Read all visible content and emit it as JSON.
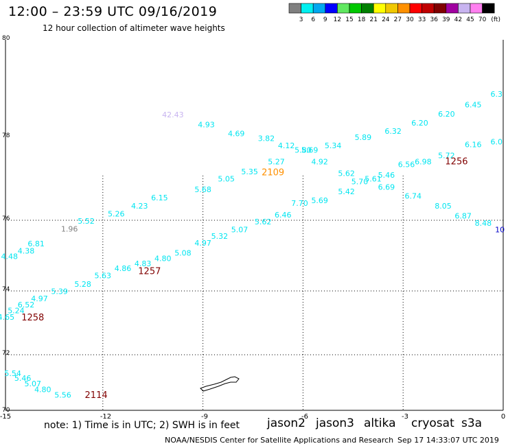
{
  "header": {
    "title": "12:00 – 23:59 UTC 09/16/2019",
    "subtitle": "12 hour collection of altimeter wave heights"
  },
  "color_scale": {
    "unit_label": "(ft)",
    "bins": [
      {
        "label": "3",
        "color": "#808080"
      },
      {
        "label": "6",
        "color": "#00f0f0"
      },
      {
        "label": "9",
        "color": "#00a8f0"
      },
      {
        "label": "12",
        "color": "#0000ff"
      },
      {
        "label": "15",
        "color": "#60e860"
      },
      {
        "label": "18",
        "color": "#00c800"
      },
      {
        "label": "21",
        "color": "#008000"
      },
      {
        "label": "24",
        "color": "#ffff00"
      },
      {
        "label": "27",
        "color": "#f0c800"
      },
      {
        "label": "30",
        "color": "#ff9000"
      },
      {
        "label": "33",
        "color": "#ff0000"
      },
      {
        "label": "36",
        "color": "#c00000"
      },
      {
        "label": "39",
        "color": "#800000"
      },
      {
        "label": "42",
        "color": "#a000a0"
      },
      {
        "label": "45",
        "color": "#c8b4f0"
      },
      {
        "label": "70",
        "color": "#ff80f0"
      },
      {
        "label": "",
        "color": "#000000"
      }
    ]
  },
  "map": {
    "lon_labels": [
      "-15",
      "-12",
      "-9",
      "-6",
      "-3",
      "0"
    ],
    "lat_labels": [
      "70",
      "72",
      "74",
      "76",
      "78",
      "80"
    ],
    "observations": [
      {
        "v": "42.43",
        "lon": -9.9,
        "lat": 78.28,
        "c": "#c8b4f0"
      },
      {
        "v": "4.93",
        "lon": -8.9,
        "lat": 78.06,
        "c": "#00e5f0"
      },
      {
        "v": "4.69",
        "lon": -8.0,
        "lat": 77.86,
        "c": "#00e5f0"
      },
      {
        "v": "3.82",
        "lon": -7.1,
        "lat": 77.76,
        "c": "#00e5f0"
      },
      {
        "v": "4.12",
        "lon": -6.5,
        "lat": 77.6,
        "c": "#00e5f0"
      },
      {
        "v": "5.80",
        "lon": -6.0,
        "lat": 77.5,
        "c": "#00e5f0"
      },
      {
        "v": "5.69",
        "lon": -5.8,
        "lat": 77.5,
        "c": "#00e5f0"
      },
      {
        "v": "5.34",
        "lon": -5.1,
        "lat": 77.6,
        "c": "#00e5f0"
      },
      {
        "v": "5.89",
        "lon": -4.2,
        "lat": 77.78,
        "c": "#00e5f0"
      },
      {
        "v": "6.32",
        "lon": -3.3,
        "lat": 77.92,
        "c": "#00e5f0"
      },
      {
        "v": "6.20",
        "lon": -2.5,
        "lat": 78.1,
        "c": "#00e5f0"
      },
      {
        "v": "6.20",
        "lon": -1.7,
        "lat": 78.3,
        "c": "#00e5f0"
      },
      {
        "v": "6.45",
        "lon": -0.9,
        "lat": 78.5,
        "c": "#00e5f0"
      },
      {
        "v": "6.3",
        "lon": -0.2,
        "lat": 78.74,
        "c": "#00e5f0"
      },
      {
        "v": "6.0",
        "lon": -0.2,
        "lat": 77.68,
        "c": "#00e5f0"
      },
      {
        "v": "6.16",
        "lon": -0.9,
        "lat": 77.62,
        "c": "#00e5f0"
      },
      {
        "v": "5.72",
        "lon": -1.7,
        "lat": 77.38,
        "c": "#00e5f0"
      },
      {
        "v": "6.98",
        "lon": -2.4,
        "lat": 77.24,
        "c": "#00e5f0"
      },
      {
        "v": "6.56",
        "lon": -2.9,
        "lat": 77.18,
        "c": "#00e5f0"
      },
      {
        "v": "5.46",
        "lon": -3.5,
        "lat": 76.94,
        "c": "#00e5f0"
      },
      {
        "v": "5.61",
        "lon": -3.9,
        "lat": 76.86,
        "c": "#00e5f0"
      },
      {
        "v": "5.70",
        "lon": -4.3,
        "lat": 76.8,
        "c": "#00e5f0"
      },
      {
        "v": "5.62",
        "lon": -4.7,
        "lat": 76.98,
        "c": "#00e5f0"
      },
      {
        "v": "4.92",
        "lon": -5.5,
        "lat": 77.24,
        "c": "#00e5f0"
      },
      {
        "v": "5.27",
        "lon": -6.8,
        "lat": 77.24,
        "c": "#00e5f0"
      },
      {
        "v": "5.35",
        "lon": -7.6,
        "lat": 77.02,
        "c": "#00e5f0"
      },
      {
        "v": "5.05",
        "lon": -8.3,
        "lat": 76.86,
        "c": "#00e5f0"
      },
      {
        "v": "5.68",
        "lon": -9.0,
        "lat": 76.62,
        "c": "#00e5f0"
      },
      {
        "v": "6.15",
        "lon": -10.3,
        "lat": 76.44,
        "c": "#00e5f0"
      },
      {
        "v": "4.23",
        "lon": -10.9,
        "lat": 76.26,
        "c": "#00e5f0"
      },
      {
        "v": "5.26",
        "lon": -11.6,
        "lat": 76.08,
        "c": "#00e5f0"
      },
      {
        "v": "5.52",
        "lon": -12.5,
        "lat": 75.9,
        "c": "#00e5f0"
      },
      {
        "v": "1.96",
        "lon": -13.0,
        "lat": 75.68,
        "c": "#808080"
      },
      {
        "v": "6.81",
        "lon": -14.0,
        "lat": 75.26,
        "c": "#00e5f0"
      },
      {
        "v": "4.38",
        "lon": -14.3,
        "lat": 75.06,
        "c": "#00e5f0"
      },
      {
        "v": "4.48",
        "lon": -14.8,
        "lat": 74.9,
        "c": "#00e5f0"
      },
      {
        "v": "7.70",
        "lon": -6.1,
        "lat": 76.32,
        "c": "#00e5f0"
      },
      {
        "v": "6.46",
        "lon": -6.6,
        "lat": 76.06,
        "c": "#00e5f0"
      },
      {
        "v": "5.62",
        "lon": -7.2,
        "lat": 75.88,
        "c": "#00e5f0"
      },
      {
        "v": "5.07",
        "lon": -7.9,
        "lat": 75.66,
        "c": "#00e5f0"
      },
      {
        "v": "5.32",
        "lon": -8.5,
        "lat": 75.48,
        "c": "#00e5f0"
      },
      {
        "v": "4.97",
        "lon": -9.0,
        "lat": 75.28,
        "c": "#00e5f0"
      },
      {
        "v": "5.08",
        "lon": -9.6,
        "lat": 75.0,
        "c": "#00e5f0"
      },
      {
        "v": "4.80",
        "lon": -10.2,
        "lat": 74.84,
        "c": "#00e5f0"
      },
      {
        "v": "4.83",
        "lon": -10.8,
        "lat": 74.7,
        "c": "#00e5f0"
      },
      {
        "v": "4.86",
        "lon": -11.4,
        "lat": 74.56,
        "c": "#00e5f0"
      },
      {
        "v": "5.63",
        "lon": -12.0,
        "lat": 74.36,
        "c": "#00e5f0"
      },
      {
        "v": "5.28",
        "lon": -12.6,
        "lat": 74.12,
        "c": "#00e5f0"
      },
      {
        "v": "5.39",
        "lon": -13.3,
        "lat": 73.9,
        "c": "#00e5f0"
      },
      {
        "v": "4.97",
        "lon": -13.9,
        "lat": 73.68,
        "c": "#00e5f0"
      },
      {
        "v": "6.52",
        "lon": -14.3,
        "lat": 73.48,
        "c": "#00e5f0"
      },
      {
        "v": "5.24",
        "lon": -14.6,
        "lat": 73.3,
        "c": "#00e5f0"
      },
      {
        "v": "4.65",
        "lon": -14.9,
        "lat": 73.1,
        "c": "#00e5f0"
      },
      {
        "v": "5.69",
        "lon": -5.5,
        "lat": 76.38,
        "c": "#00e5f0"
      },
      {
        "v": "5.42",
        "lon": -4.7,
        "lat": 76.58,
        "c": "#00e5f0"
      },
      {
        "v": "6.69",
        "lon": -3.5,
        "lat": 76.68,
        "c": "#00e5f0"
      },
      {
        "v": "6.74",
        "lon": -2.7,
        "lat": 76.48,
        "c": "#00e5f0"
      },
      {
        "v": "8.05",
        "lon": -1.8,
        "lat": 76.26,
        "c": "#00e5f0"
      },
      {
        "v": "6.87",
        "lon": -1.2,
        "lat": 76.04,
        "c": "#00e5f0"
      },
      {
        "v": "8.48",
        "lon": -0.6,
        "lat": 75.84,
        "c": "#00e5f0"
      },
      {
        "v": "10",
        "lon": -0.1,
        "lat": 75.66,
        "c": "#0000c8"
      },
      {
        "v": "5.54",
        "lon": -14.7,
        "lat": 71.24,
        "c": "#00e5f0"
      },
      {
        "v": "5.46",
        "lon": -14.4,
        "lat": 71.06,
        "c": "#00e5f0"
      },
      {
        "v": "5.07",
        "lon": -14.1,
        "lat": 70.86,
        "c": "#00e5f0"
      },
      {
        "v": "4.80",
        "lon": -13.8,
        "lat": 70.66,
        "c": "#00e5f0"
      },
      {
        "v": "5.56",
        "lon": -13.2,
        "lat": 70.46,
        "c": "#00e5f0"
      }
    ],
    "time_stamps": [
      {
        "v": "2109",
        "lon": -6.9,
        "lat": 77.0,
        "c": "#ff9000"
      },
      {
        "v": "1256",
        "lon": -1.4,
        "lat": 77.24,
        "c": "#800000"
      },
      {
        "v": "1257",
        "lon": -10.6,
        "lat": 74.48,
        "c": "#800000"
      },
      {
        "v": "1258",
        "lon": -14.1,
        "lat": 73.08,
        "c": "#800000"
      },
      {
        "v": "2114",
        "lon": -12.2,
        "lat": 70.44,
        "c": "#800000"
      }
    ]
  },
  "footer": {
    "note": "note: 1) Time is in UTC; 2) SWH is in feet",
    "satellites": [
      {
        "name": "jason2",
        "color": "#0000e6"
      },
      {
        "name": "jason3",
        "color": "#00a000"
      },
      {
        "name": "altika",
        "color": "#ff9000"
      },
      {
        "name": "cryosat",
        "color": "#e00000"
      },
      {
        "name": "s3a",
        "color": "#800000"
      }
    ],
    "credit": "NOAA/NESDIS Center for Satellite Applications and Research",
    "timestamp": "Sep 17 14:33:07 UTC 2019"
  }
}
